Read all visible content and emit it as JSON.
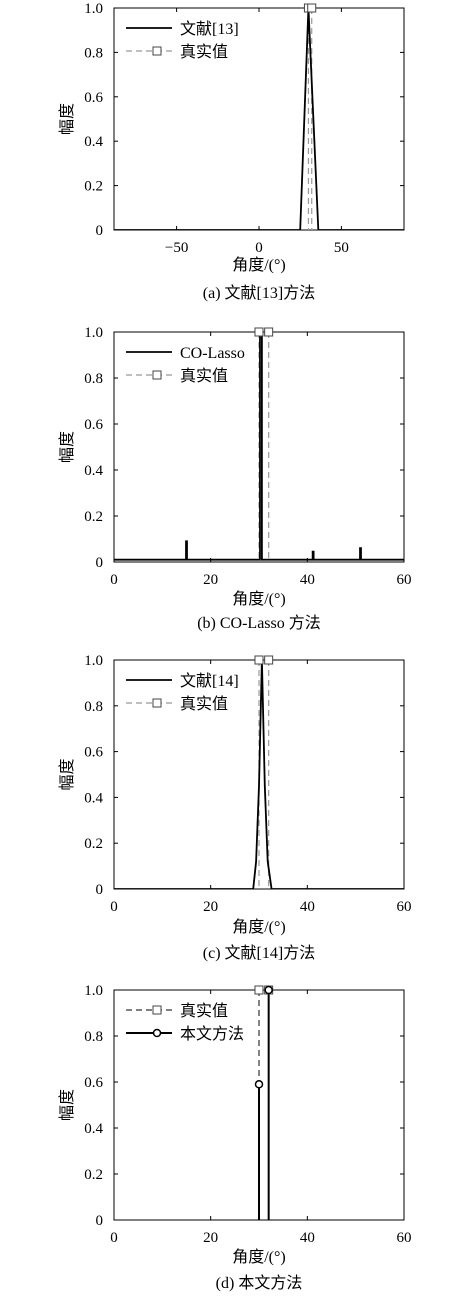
{
  "chart_data": [
    {
      "type": "line",
      "caption": "(a) 文献[13]方法",
      "xlabel": "角度/(°)",
      "ylabel": "幅度",
      "xlim": [
        -88,
        88
      ],
      "ylim": [
        0,
        1
      ],
      "xticks": [
        -50,
        0,
        50
      ],
      "xtick_labels": [
        "−50",
        "0",
        "50"
      ],
      "yticks": [
        0,
        0.2,
        0.4,
        0.6,
        0.8,
        1.0
      ],
      "ytick_labels": [
        "0",
        "0.2",
        "0.4",
        "0.6",
        "0.8",
        "1.0"
      ],
      "legend": "top-left",
      "series": [
        {
          "name": "文献[13]",
          "style": "solid",
          "color": "#000000",
          "points": [
            [
              -88,
              0
            ],
            [
              25,
              0
            ],
            [
              30,
              1
            ],
            [
              36,
              0
            ],
            [
              88,
              0
            ]
          ]
        }
      ],
      "true_values": {
        "name": "真实值",
        "style": "dashed-square",
        "color": "#999999",
        "x": [
          30,
          32
        ]
      }
    },
    {
      "type": "line",
      "caption": "(b) CO-Lasso 方法",
      "xlabel": "角度/(°)",
      "ylabel": "幅度",
      "xlim": [
        0,
        60
      ],
      "ylim": [
        0,
        1
      ],
      "xticks": [
        0,
        20,
        40,
        60
      ],
      "xtick_labels": [
        "0",
        "20",
        "40",
        "60"
      ],
      "yticks": [
        0,
        0.2,
        0.4,
        0.6,
        0.8,
        1.0
      ],
      "ytick_labels": [
        "0",
        "0.2",
        "0.4",
        "0.6",
        "0.8",
        "1.0"
      ],
      "legend": "top-left",
      "series": [
        {
          "name": "CO-Lasso",
          "style": "solid",
          "color": "#000000",
          "points": [
            [
              0,
              0.01
            ],
            [
              14.9,
              0.01
            ],
            [
              14.9,
              0.09
            ],
            [
              15.1,
              0.09
            ],
            [
              15.1,
              0.01
            ],
            [
              30.2,
              0.01
            ],
            [
              30.2,
              1.0
            ],
            [
              30.6,
              1.0
            ],
            [
              30.6,
              0.01
            ],
            [
              41.1,
              0.01
            ],
            [
              41.1,
              0.045
            ],
            [
              41.3,
              0.045
            ],
            [
              41.3,
              0.01
            ],
            [
              50.9,
              0.01
            ],
            [
              50.9,
              0.06
            ],
            [
              51.1,
              0.06
            ],
            [
              51.1,
              0.01
            ],
            [
              60,
              0.01
            ]
          ]
        }
      ],
      "true_values": {
        "name": "真实值",
        "style": "dashed-square",
        "color": "#999999",
        "x": [
          30,
          32
        ]
      }
    },
    {
      "type": "line",
      "caption": "(c) 文献[14]方法",
      "xlabel": "角度/(°)",
      "ylabel": "幅度",
      "xlim": [
        0,
        60
      ],
      "ylim": [
        0,
        1
      ],
      "xticks": [
        0,
        20,
        40,
        60
      ],
      "xtick_labels": [
        "0",
        "20",
        "40",
        "60"
      ],
      "yticks": [
        0,
        0.2,
        0.4,
        0.6,
        0.8,
        1.0
      ],
      "ytick_labels": [
        "0",
        "0.2",
        "0.4",
        "0.6",
        "0.8",
        "1.0"
      ],
      "legend": "top-left",
      "series": [
        {
          "name": "文献[14]",
          "style": "solid",
          "color": "#000000",
          "points": [
            [
              0,
              0
            ],
            [
              28.8,
              0
            ],
            [
              29.4,
              0.12
            ],
            [
              30.0,
              0.45
            ],
            [
              30.6,
              1.0
            ],
            [
              31.2,
              0.45
            ],
            [
              31.8,
              0.12
            ],
            [
              32.6,
              0
            ],
            [
              60,
              0
            ]
          ]
        }
      ],
      "true_values": {
        "name": "真实值",
        "style": "dashed-square",
        "color": "#999999",
        "x": [
          30,
          32
        ]
      }
    },
    {
      "type": "line",
      "caption": "(d) 本文方法",
      "xlabel": "角度/(°)",
      "ylabel": "幅度",
      "xlim": [
        0,
        60
      ],
      "ylim": [
        0,
        1
      ],
      "xticks": [
        0,
        20,
        40,
        60
      ],
      "xtick_labels": [
        "0",
        "20",
        "40",
        "60"
      ],
      "yticks": [
        0,
        0.2,
        0.4,
        0.6,
        0.8,
        1.0
      ],
      "ytick_labels": [
        "0",
        "0.2",
        "0.4",
        "0.6",
        "0.8",
        "1.0"
      ],
      "legend": "top-left",
      "true_values": {
        "name": "真实值",
        "style": "dashed-square",
        "color": "#333333",
        "x": [
          30,
          32
        ]
      },
      "stems": {
        "name": "本文方法",
        "style": "stem-circle",
        "color": "#000000",
        "x": [
          30,
          32
        ],
        "y": [
          0.59,
          1.0
        ]
      }
    }
  ]
}
